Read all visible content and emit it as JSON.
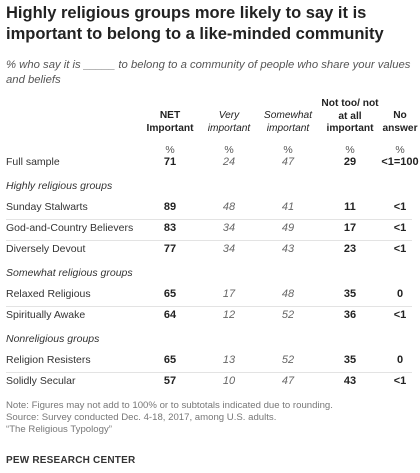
{
  "title": "Highly religious groups more likely to say it is important to belong to a like-minded community",
  "subtitle": "% who say it is _____ to belong to a community of people who share your values and beliefs",
  "columns": [
    {
      "label": "NET Important",
      "style": "bold"
    },
    {
      "label": "Very important",
      "style": "italic"
    },
    {
      "label": "Somewhat important",
      "style": "italic"
    },
    {
      "label": "Not too/ not at all important",
      "style": "bold"
    },
    {
      "label": "No answer",
      "style": "bold"
    }
  ],
  "pct_symbol": "%",
  "notes": [
    "Note: Figures may not add to 100% or to subtotals indicated due to rounding.",
    "Source: Survey conducted Dec. 4-18, 2017, among U.S. adults.",
    "“The Religious Typology”"
  ],
  "source": "PEW RESEARCH CENTER",
  "chart_data": {
    "type": "table",
    "columns": [
      "NET Important",
      "Very important",
      "Somewhat important",
      "Not too/ not at all important",
      "No answer"
    ],
    "rows": [
      {
        "label": "Full sample",
        "group": null,
        "values": [
          "71",
          "24",
          "47",
          "29",
          "<1=100"
        ]
      },
      {
        "label": "Sunday Stalwarts",
        "group": "Highly religious groups",
        "values": [
          "89",
          "48",
          "41",
          "11",
          "<1"
        ]
      },
      {
        "label": "God-and-Country Believers",
        "group": "Highly religious groups",
        "values": [
          "83",
          "34",
          "49",
          "17",
          "<1"
        ]
      },
      {
        "label": "Diversely Devout",
        "group": "Highly religious groups",
        "values": [
          "77",
          "34",
          "43",
          "23",
          "<1"
        ]
      },
      {
        "label": "Relaxed Religious",
        "group": "Somewhat religious groups",
        "values": [
          "65",
          "17",
          "48",
          "35",
          "0"
        ]
      },
      {
        "label": "Spiritually Awake",
        "group": "Somewhat religious groups",
        "values": [
          "64",
          "12",
          "52",
          "36",
          "<1"
        ]
      },
      {
        "label": "Religion Resisters",
        "group": "Nonreligious groups",
        "values": [
          "65",
          "13",
          "52",
          "35",
          "0"
        ]
      },
      {
        "label": "Solidly Secular",
        "group": "Nonreligious groups",
        "values": [
          "57",
          "10",
          "47",
          "43",
          "<1"
        ]
      }
    ],
    "groups": [
      "Highly religious groups",
      "Somewhat religious groups",
      "Nonreligious groups"
    ]
  }
}
